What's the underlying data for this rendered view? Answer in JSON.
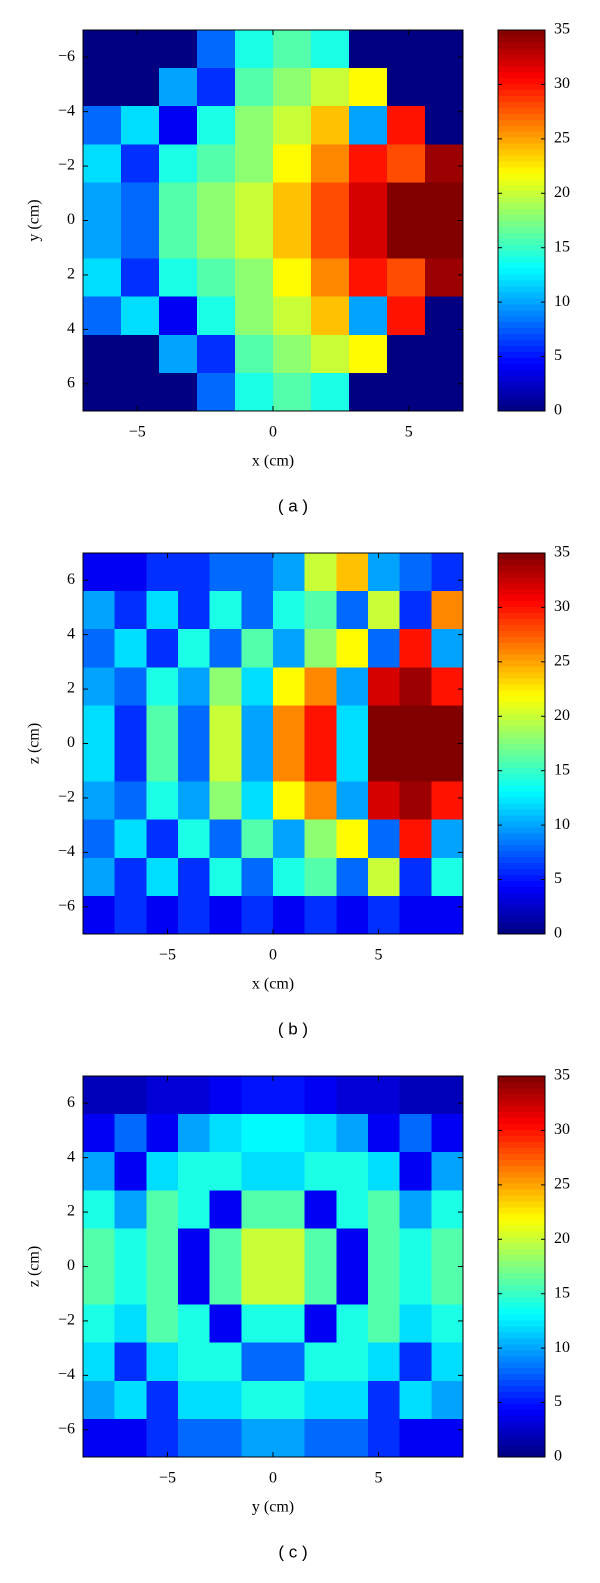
{
  "chart_data": [
    {
      "type": "heatmap",
      "colormap": "jet",
      "xlabel": "x (cm)",
      "ylabel": "y (cm)",
      "caption": "( a )",
      "x": [
        -6.3,
        -4.9,
        -3.5,
        -2.1,
        -0.7,
        0.7,
        2.1,
        3.5,
        4.9,
        6.3
      ],
      "y": [
        -6.3,
        -4.9,
        -3.5,
        -2.1,
        -0.7,
        0.7,
        2.1,
        3.5,
        4.9,
        6.3
      ],
      "y_reversed": true,
      "values": [
        [
          0,
          0,
          0,
          8,
          14,
          16,
          14,
          0,
          0,
          0
        ],
        [
          0,
          0,
          10,
          6,
          16,
          18,
          20,
          22,
          0,
          0
        ],
        [
          8,
          12,
          4,
          14,
          18,
          20,
          24,
          10,
          30,
          0
        ],
        [
          12,
          6,
          14,
          16,
          18,
          22,
          26,
          30,
          28,
          34
        ],
        [
          10,
          8,
          16,
          18,
          20,
          24,
          28,
          32,
          35,
          35
        ],
        [
          10,
          8,
          16,
          18,
          20,
          24,
          28,
          32,
          35,
          35
        ],
        [
          12,
          6,
          14,
          16,
          18,
          22,
          26,
          30,
          28,
          34
        ],
        [
          8,
          12,
          4,
          14,
          18,
          20,
          24,
          10,
          30,
          0
        ],
        [
          0,
          0,
          10,
          6,
          16,
          18,
          20,
          22,
          0,
          0
        ],
        [
          0,
          0,
          0,
          8,
          14,
          16,
          14,
          0,
          0,
          0
        ]
      ],
      "xlim": [
        -7,
        7
      ],
      "ylim": [
        -7,
        7
      ],
      "xticks": [
        {
          "value": -5,
          "label": "−5"
        },
        0,
        5
      ],
      "yticks": [
        {
          "value": -6,
          "label": "−6"
        },
        {
          "value": -4,
          "label": "−4"
        },
        {
          "value": -2,
          "label": "−2"
        },
        0,
        2,
        4,
        6
      ],
      "clim": [
        0,
        35
      ],
      "cticks": [
        0,
        5,
        10,
        15,
        20,
        25,
        30,
        35
      ]
    },
    {
      "type": "heatmap",
      "colormap": "jet",
      "xlabel": "x (cm)",
      "ylabel": "z (cm)",
      "caption": "( b )",
      "x": [
        -8.25,
        -6.75,
        -5.25,
        -3.75,
        -2.25,
        -0.75,
        0.75,
        2.25,
        3.75,
        5.25,
        6.75,
        8.25
      ],
      "y": [
        6.3,
        4.9,
        3.5,
        2.1,
        0.7,
        -0.7,
        -2.1,
        -3.5,
        -4.9,
        -6.3
      ],
      "y_reversed": false,
      "values": [
        [
          4,
          4,
          6,
          6,
          8,
          8,
          10,
          20,
          24,
          10,
          8,
          6
        ],
        [
          10,
          6,
          12,
          6,
          14,
          8,
          14,
          16,
          8,
          20,
          6,
          26
        ],
        [
          8,
          12,
          6,
          14,
          8,
          16,
          10,
          18,
          22,
          8,
          30,
          10
        ],
        [
          10,
          8,
          14,
          10,
          18,
          12,
          22,
          26,
          10,
          32,
          34,
          30
        ],
        [
          12,
          6,
          16,
          8,
          20,
          10,
          26,
          30,
          12,
          35,
          35,
          35
        ],
        [
          12,
          6,
          16,
          8,
          20,
          10,
          26,
          30,
          12,
          35,
          35,
          35
        ],
        [
          10,
          8,
          14,
          10,
          18,
          12,
          22,
          26,
          10,
          32,
          34,
          30
        ],
        [
          8,
          12,
          6,
          14,
          8,
          16,
          10,
          18,
          22,
          8,
          30,
          10
        ],
        [
          10,
          6,
          12,
          6,
          14,
          8,
          14,
          16,
          8,
          20,
          6,
          14
        ],
        [
          4,
          6,
          4,
          6,
          4,
          6,
          4,
          6,
          4,
          6,
          4,
          4
        ]
      ],
      "xlim": [
        -9,
        9
      ],
      "ylim": [
        -7,
        7
      ],
      "xticks": [
        {
          "value": -5,
          "label": "−5"
        },
        0,
        5
      ],
      "yticks": [
        {
          "value": -6,
          "label": "−6"
        },
        {
          "value": -4,
          "label": "−4"
        },
        {
          "value": -2,
          "label": "−2"
        },
        0,
        2,
        4,
        6
      ],
      "clim": [
        0,
        35
      ],
      "cticks": [
        0,
        5,
        10,
        15,
        20,
        25,
        30,
        35
      ]
    },
    {
      "type": "heatmap",
      "colormap": "jet",
      "xlabel": "y (cm)",
      "ylabel": "z (cm)",
      "caption": "( c )",
      "x": [
        -8.25,
        -6.75,
        -5.25,
        -3.75,
        -2.25,
        -0.75,
        0.75,
        2.25,
        3.75,
        5.25,
        6.75,
        8.25
      ],
      "y": [
        6.3,
        4.9,
        3.5,
        2.1,
        0.7,
        -0.7,
        -2.1,
        -3.5,
        -4.9,
        -6.3
      ],
      "y_reversed": false,
      "values": [
        [
          2,
          2,
          3,
          3,
          4,
          5,
          5,
          4,
          3,
          3,
          2,
          2
        ],
        [
          4,
          8,
          4,
          10,
          12,
          13,
          13,
          12,
          10,
          4,
          8,
          4
        ],
        [
          10,
          4,
          12,
          14,
          14,
          12,
          12,
          14,
          14,
          12,
          4,
          10
        ],
        [
          14,
          10,
          16,
          14,
          4,
          16,
          16,
          4,
          14,
          16,
          10,
          14
        ],
        [
          16,
          14,
          16,
          4,
          16,
          20,
          20,
          16,
          4,
          16,
          14,
          16
        ],
        [
          16,
          14,
          16,
          4,
          16,
          20,
          20,
          16,
          4,
          16,
          14,
          16
        ],
        [
          14,
          12,
          16,
          14,
          4,
          14,
          14,
          4,
          14,
          16,
          12,
          14
        ],
        [
          12,
          6,
          12,
          14,
          14,
          8,
          8,
          14,
          14,
          12,
          6,
          12
        ],
        [
          10,
          12,
          6,
          12,
          12,
          14,
          14,
          12,
          12,
          6,
          12,
          10
        ],
        [
          4,
          4,
          6,
          8,
          8,
          10,
          10,
          8,
          8,
          6,
          4,
          4
        ]
      ],
      "xlim": [
        -9,
        9
      ],
      "ylim": [
        -7,
        7
      ],
      "xticks": [
        {
          "value": -5,
          "label": "−5"
        },
        0,
        5
      ],
      "yticks": [
        {
          "value": -6,
          "label": "−6"
        },
        {
          "value": -4,
          "label": "−4"
        },
        {
          "value": -2,
          "label": "−2"
        },
        0,
        2,
        4,
        6
      ],
      "clim": [
        0,
        35
      ],
      "cticks": [
        0,
        5,
        10,
        15,
        20,
        25,
        30,
        35
      ]
    }
  ]
}
